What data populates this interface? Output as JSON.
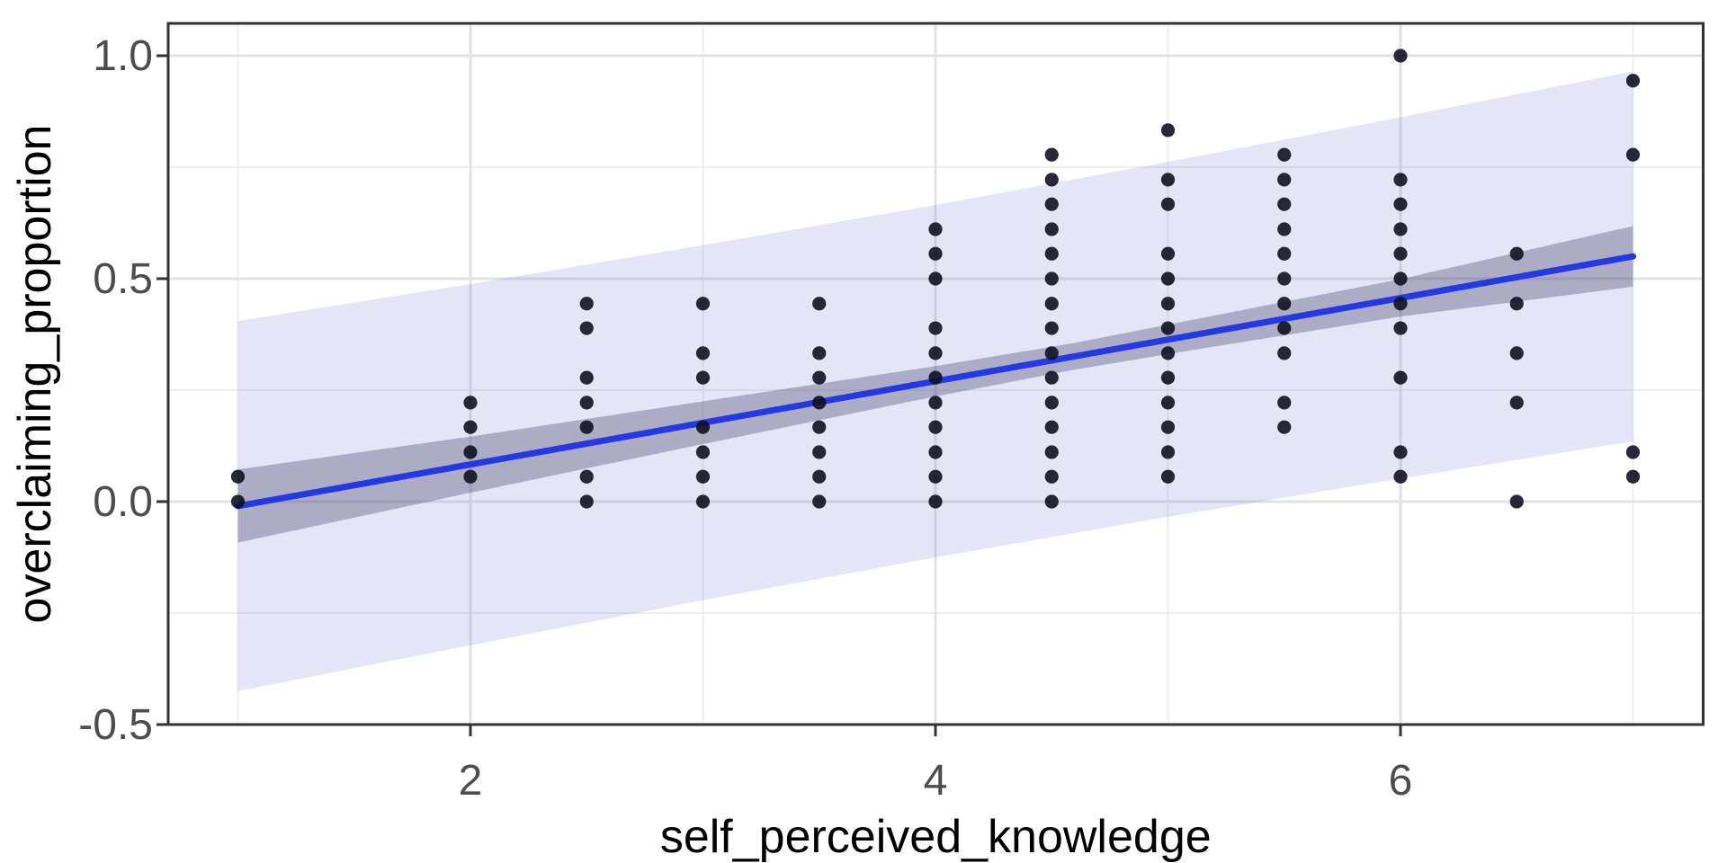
{
  "figure": {
    "background": "#ffffff"
  },
  "chart_data": {
    "type": "scatter",
    "title": "",
    "xlabel": "self_perceived_knowledge",
    "ylabel": "overclaiming_proportion",
    "xlim": [
      0.7,
      7.3
    ],
    "ylim": [
      -0.5,
      1.073
    ],
    "grid": "on",
    "legend": "none",
    "x_major_ticks": [
      2,
      4,
      6
    ],
    "x_major_tick_labels": [
      "2",
      "4",
      "6"
    ],
    "x_minor_gridlines": [
      1,
      3,
      5,
      7
    ],
    "y_major_ticks": [
      -0.5,
      0.0,
      0.5,
      1.0
    ],
    "y_major_tick_labels": [
      "-0.5",
      "0.0",
      "0.5",
      "1.0"
    ],
    "y_minor_gridlines": [
      -0.25,
      0.25,
      0.75
    ],
    "point_columns": [
      {
        "x": 1.0,
        "y": [
          0.0,
          0.056
        ]
      },
      {
        "x": 2.0,
        "y": [
          0.056,
          0.111,
          0.167,
          0.222
        ]
      },
      {
        "x": 2.5,
        "y": [
          0.0,
          0.056,
          0.167,
          0.222,
          0.278,
          0.389,
          0.444
        ]
      },
      {
        "x": 3.0,
        "y": [
          0.0,
          0.056,
          0.111,
          0.167,
          0.278,
          0.333,
          0.444
        ]
      },
      {
        "x": 3.5,
        "y": [
          0.0,
          0.056,
          0.111,
          0.167,
          0.222,
          0.278,
          0.333,
          0.444
        ]
      },
      {
        "x": 4.0,
        "y": [
          0.0,
          0.056,
          0.111,
          0.167,
          0.222,
          0.278,
          0.333,
          0.389,
          0.5,
          0.556,
          0.611
        ]
      },
      {
        "x": 4.5,
        "y": [
          0.0,
          0.056,
          0.111,
          0.167,
          0.222,
          0.278,
          0.333,
          0.389,
          0.444,
          0.5,
          0.556,
          0.611,
          0.667,
          0.722,
          0.778
        ]
      },
      {
        "x": 5.0,
        "y": [
          0.056,
          0.111,
          0.167,
          0.222,
          0.278,
          0.333,
          0.389,
          0.444,
          0.5,
          0.556,
          0.667,
          0.722,
          0.833
        ]
      },
      {
        "x": 5.5,
        "y": [
          0.167,
          0.222,
          0.333,
          0.389,
          0.444,
          0.5,
          0.556,
          0.611,
          0.667,
          0.722,
          0.778
        ]
      },
      {
        "x": 6.0,
        "y": [
          0.056,
          0.111,
          0.278,
          0.389,
          0.444,
          0.5,
          0.556,
          0.611,
          0.667,
          0.722,
          1.0
        ]
      },
      {
        "x": 6.5,
        "y": [
          0.0,
          0.222,
          0.333,
          0.444,
          0.556
        ]
      },
      {
        "x": 7.0,
        "y": [
          0.056,
          0.111,
          0.778,
          0.944
        ]
      }
    ],
    "regression_line": {
      "x": [
        1,
        7
      ],
      "y": [
        -0.01,
        0.55
      ]
    },
    "confidence_band": {
      "x": [
        1,
        2,
        3,
        4,
        4.6,
        5,
        6,
        7
      ],
      "top": [
        0.072,
        0.146,
        0.225,
        0.304,
        0.356,
        0.397,
        0.499,
        0.618
      ],
      "bottom": [
        -0.092,
        0.02,
        0.129,
        0.236,
        0.296,
        0.331,
        0.415,
        0.482
      ]
    },
    "prediction_band": {
      "x": [
        1,
        2,
        3,
        4,
        5,
        6,
        7
      ],
      "top": [
        0.405,
        0.488,
        0.575,
        0.665,
        0.762,
        0.862,
        0.965
      ],
      "bottom": [
        -0.425,
        -0.322,
        -0.221,
        -0.125,
        -0.034,
        0.052,
        0.135
      ]
    },
    "colors": {
      "line": "#2638DF",
      "points": "#111122",
      "confidence_band_fill": "rgba(72,72,108,0.36)",
      "prediction_band_fill": "rgba(101,101,212,0.17)",
      "major_gridline": "#e2e2e2",
      "minor_gridline": "#efefef",
      "panel_border": "#333333",
      "tick_label": "#4d4d4d",
      "axis_title": "#000000"
    }
  }
}
